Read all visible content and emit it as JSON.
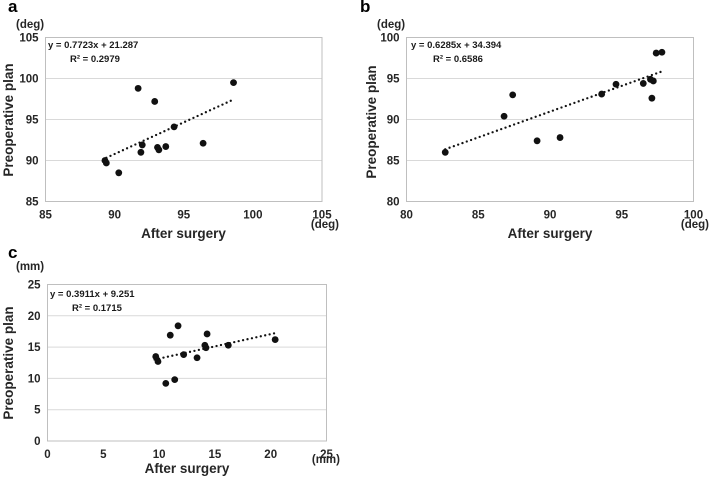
{
  "figure": {
    "background": "#ffffff",
    "colors": {
      "point": "#111111",
      "trendline": "#111111",
      "gridline": "#d9d9d9",
      "plot_border": "#bfbfbf",
      "text": "#262626"
    }
  },
  "chart_data": [
    {
      "id": "a",
      "type": "scatter",
      "panel_label": "a",
      "x_title": "After surgery",
      "y_title": "Preoperative plan",
      "x_unit": "(deg)",
      "y_unit": "(deg)",
      "equation_label": "y = 0.7723x + 21.287",
      "r2_label": "R² = 0.2979",
      "xlim": [
        85,
        105
      ],
      "ylim": [
        85,
        105
      ],
      "xticks": [
        85,
        90,
        95,
        100,
        105
      ],
      "yticks": [
        85,
        90,
        95,
        100,
        105
      ],
      "grid": "horizontal-only",
      "legend": "none",
      "marker": "filled-circle",
      "points": [
        [
          89.3,
          90.0
        ],
        [
          89.4,
          89.7
        ],
        [
          90.3,
          88.5
        ],
        [
          91.7,
          98.8
        ],
        [
          91.9,
          91.0
        ],
        [
          92.0,
          91.9
        ],
        [
          92.9,
          97.2
        ],
        [
          93.1,
          91.6
        ],
        [
          93.2,
          91.3
        ],
        [
          93.7,
          91.7
        ],
        [
          94.3,
          94.1
        ],
        [
          96.4,
          92.1
        ],
        [
          98.6,
          99.5
        ]
      ],
      "trendline": {
        "slope": 0.7723,
        "intercept": 21.287,
        "r_squared": 0.2979,
        "x_start": 89.4,
        "x_end": 98.4,
        "style": "dotted"
      }
    },
    {
      "id": "b",
      "type": "scatter",
      "panel_label": "b",
      "x_title": "After surgery",
      "y_title": "Preoperative plan",
      "x_unit": "(deg)",
      "y_unit": "(deg)",
      "equation_label": "y = 0.6285x + 34.394",
      "r2_label": "R² = 0.6586",
      "xlim": [
        80,
        100
      ],
      "ylim": [
        80,
        100
      ],
      "xticks": [
        80,
        85,
        90,
        95,
        100
      ],
      "yticks": [
        80,
        85,
        90,
        95,
        100
      ],
      "grid": "horizontal-only",
      "legend": "none",
      "marker": "filled-circle",
      "points": [
        [
          82.7,
          86.0
        ],
        [
          86.8,
          90.4
        ],
        [
          87.4,
          93.0
        ],
        [
          89.1,
          87.4
        ],
        [
          90.7,
          87.8
        ],
        [
          93.6,
          93.1
        ],
        [
          94.6,
          94.3
        ],
        [
          96.5,
          94.4
        ],
        [
          97.0,
          94.9
        ],
        [
          97.1,
          92.6
        ],
        [
          97.2,
          94.7
        ],
        [
          97.4,
          98.1
        ],
        [
          97.8,
          98.2
        ]
      ],
      "trendline": {
        "slope": 0.6285,
        "intercept": 34.394,
        "r_squared": 0.6586,
        "x_start": 82.7,
        "x_end": 97.7,
        "style": "dotted"
      }
    },
    {
      "id": "c",
      "type": "scatter",
      "panel_label": "c",
      "x_title": "After surgery",
      "y_title": "Preoperative plan",
      "x_unit": "(mm)",
      "y_unit": "(mm)",
      "equation_label": "y = 0.3911x + 9.251",
      "r2_label": "R² = 0.1715",
      "xlim": [
        0,
        25
      ],
      "ylim": [
        0,
        25
      ],
      "xticks": [
        0,
        5,
        10,
        15,
        20,
        25
      ],
      "yticks": [
        0,
        5,
        10,
        15,
        20,
        25
      ],
      "grid": "horizontal-only",
      "legend": "none",
      "marker": "filled-circle",
      "points": [
        [
          9.7,
          13.5
        ],
        [
          9.9,
          12.7
        ],
        [
          10.6,
          9.2
        ],
        [
          11.0,
          16.9
        ],
        [
          11.4,
          9.8
        ],
        [
          11.7,
          18.4
        ],
        [
          12.2,
          13.8
        ],
        [
          13.4,
          13.3
        ],
        [
          14.1,
          15.3
        ],
        [
          14.2,
          14.9
        ],
        [
          14.3,
          17.1
        ],
        [
          16.2,
          15.3
        ],
        [
          20.4,
          16.2
        ]
      ],
      "trendline": {
        "slope": 0.3911,
        "intercept": 9.251,
        "r_squared": 0.1715,
        "x_start": 9.6,
        "x_end": 20.3,
        "style": "dotted"
      }
    }
  ]
}
